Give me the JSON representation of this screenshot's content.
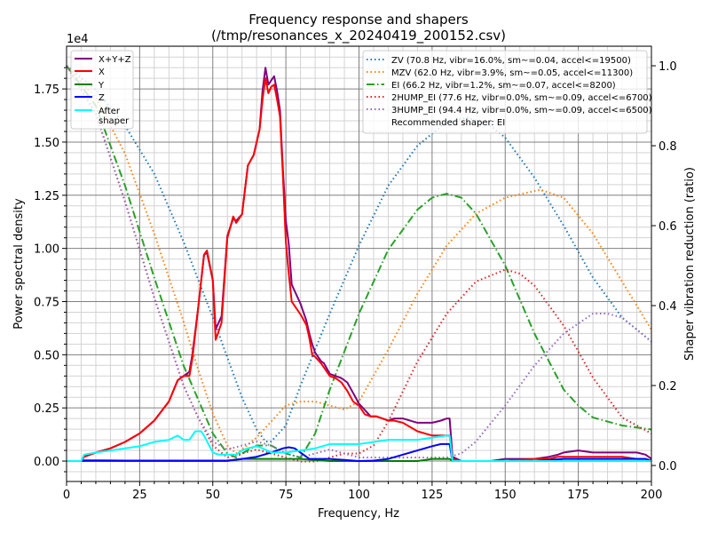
{
  "chart_data": {
    "type": "line",
    "title": "Frequency response and shapers",
    "subtitle": "(/tmp/resonances_x_20240419_200152.csv)",
    "xlabel": "Frequency, Hz",
    "ylabel": "Power spectral density",
    "y2label": "Shaper vibration reduction (ratio)",
    "y_offset_label": "1e4",
    "xlim": [
      0,
      200
    ],
    "ylim": [
      -0.096,
      1.951
    ],
    "y2lim": [
      -0.04,
      1.049
    ],
    "grid": true,
    "xticks": [
      0,
      25,
      50,
      75,
      100,
      125,
      150,
      175,
      200
    ],
    "xtick_labels": [
      "0",
      "25",
      "50",
      "75",
      "100",
      "125",
      "150",
      "175",
      "200"
    ],
    "yticks": [
      0,
      0.25,
      0.5,
      0.75,
      1.0,
      1.25,
      1.5,
      1.75
    ],
    "ytick_labels": [
      "0.00",
      "0.25",
      "0.50",
      "0.75",
      "1.00",
      "1.25",
      "1.50",
      "1.75"
    ],
    "y2ticks": [
      0,
      0.2,
      0.4,
      0.6,
      0.8,
      1.0
    ],
    "y2tick_labels": [
      "0.0",
      "0.2",
      "0.4",
      "0.6",
      "0.8",
      "1.0"
    ],
    "legend_left_placement": "top-left",
    "legend_right_placement": "top-right",
    "psd_series": [
      {
        "name": "X+Y+Z",
        "color": "#800080",
        "width": 2,
        "x": [
          0,
          5,
          6,
          10,
          15,
          20,
          25,
          30,
          35,
          38,
          40,
          42,
          43,
          45,
          47,
          48,
          50,
          51,
          53,
          55,
          57,
          58,
          60,
          62,
          64,
          65,
          66,
          67,
          68,
          69,
          70,
          71,
          72,
          73,
          74,
          75,
          76,
          77,
          78,
          80,
          82,
          83,
          84,
          85,
          87,
          88,
          90,
          92,
          94,
          96,
          98,
          100,
          102,
          104,
          106,
          108,
          110,
          112,
          115,
          120,
          125,
          128,
          130,
          131,
          132,
          135,
          140,
          145,
          150,
          160,
          165,
          168,
          170,
          175,
          180,
          185,
          190,
          195,
          198,
          200
        ],
        "y": [
          0,
          0,
          0.02,
          0.04,
          0.06,
          0.09,
          0.13,
          0.19,
          0.28,
          0.38,
          0.4,
          0.42,
          0.5,
          0.72,
          0.97,
          0.98,
          0.85,
          0.62,
          0.68,
          1.06,
          1.14,
          1.13,
          1.16,
          1.39,
          1.44,
          1.5,
          1.56,
          1.74,
          1.85,
          1.77,
          1.79,
          1.81,
          1.74,
          1.65,
          1.37,
          1.13,
          1.02,
          0.83,
          0.8,
          0.74,
          0.66,
          0.6,
          0.55,
          0.51,
          0.47,
          0.46,
          0.41,
          0.4,
          0.39,
          0.37,
          0.32,
          0.27,
          0.24,
          0.21,
          0.21,
          0.2,
          0.19,
          0.2,
          0.2,
          0.18,
          0.18,
          0.19,
          0.2,
          0.2,
          0.02,
          0.0,
          0.0,
          0.0,
          0.01,
          0.01,
          0.02,
          0.03,
          0.04,
          0.05,
          0.04,
          0.04,
          0.04,
          0.04,
          0.03,
          0.01
        ]
      },
      {
        "name": "X",
        "color": "#ff0000",
        "width": 2,
        "x": [
          0,
          5,
          6,
          10,
          15,
          20,
          25,
          30,
          35,
          38,
          40,
          42,
          43,
          45,
          47,
          48,
          50,
          51,
          53,
          55,
          57,
          58,
          60,
          62,
          64,
          65,
          66,
          67,
          68,
          69,
          70,
          71,
          72,
          73,
          74,
          75,
          76,
          77,
          78,
          80,
          82,
          83,
          84,
          85,
          87,
          88,
          90,
          92,
          94,
          96,
          98,
          100,
          102,
          104,
          106,
          108,
          110,
          112,
          115,
          120,
          125,
          128,
          130,
          131,
          132,
          135,
          140,
          145,
          150,
          160,
          165,
          168,
          170,
          175,
          180,
          185,
          190,
          195,
          198,
          200
        ],
        "y": [
          0,
          0,
          0.02,
          0.04,
          0.06,
          0.09,
          0.13,
          0.19,
          0.28,
          0.38,
          0.4,
          0.4,
          0.48,
          0.72,
          0.97,
          0.99,
          0.85,
          0.57,
          0.65,
          1.05,
          1.15,
          1.12,
          1.16,
          1.39,
          1.44,
          1.5,
          1.56,
          1.7,
          1.8,
          1.73,
          1.76,
          1.77,
          1.7,
          1.62,
          1.34,
          1.03,
          0.88,
          0.75,
          0.73,
          0.69,
          0.64,
          0.58,
          0.5,
          0.49,
          0.46,
          0.44,
          0.4,
          0.39,
          0.37,
          0.33,
          0.28,
          0.26,
          0.22,
          0.21,
          0.21,
          0.2,
          0.19,
          0.19,
          0.18,
          0.14,
          0.12,
          0.12,
          0.12,
          0.12,
          0.01,
          0.0,
          0.0,
          0.0,
          0.0,
          0.01,
          0.01,
          0.02,
          0.02,
          0.02,
          0.02,
          0.02,
          0.02,
          0.01,
          0.01,
          0.0
        ]
      },
      {
        "name": "Y",
        "color": "#008000",
        "width": 2,
        "x": [
          0,
          20,
          40,
          55,
          60,
          70,
          80,
          90,
          100,
          110,
          120,
          125,
          130,
          131,
          132,
          135,
          150,
          175,
          200
        ],
        "y": [
          0,
          0,
          0,
          0,
          0.01,
          0.01,
          0.01,
          0.0,
          0.0,
          0.0,
          0.0,
          0.01,
          0.01,
          0.01,
          0.0,
          0.0,
          0.0,
          0.0,
          0.0
        ]
      },
      {
        "name": "Z",
        "color": "#0000ff",
        "width": 2,
        "x": [
          0,
          5,
          6,
          10,
          20,
          30,
          40,
          50,
          55,
          60,
          65,
          70,
          74,
          76,
          78,
          80,
          82,
          83,
          85,
          90,
          95,
          100,
          105,
          110,
          115,
          120,
          125,
          128,
          130,
          131,
          132,
          135,
          140,
          150,
          160,
          170,
          175,
          180,
          190,
          195,
          198,
          200
        ],
        "y": [
          0,
          0,
          0.003,
          0.003,
          0.002,
          0.002,
          0.002,
          0.002,
          0.002,
          0.01,
          0.02,
          0.04,
          0.06,
          0.065,
          0.06,
          0.04,
          0.02,
          0.01,
          0.01,
          0.01,
          0.005,
          0.0,
          0.002,
          0.01,
          0.03,
          0.05,
          0.07,
          0.08,
          0.08,
          0.08,
          0.0,
          0.0,
          0.0,
          0.0,
          0.0,
          0.01,
          0.01,
          0.01,
          0.01,
          0.01,
          0.01,
          0.0
        ]
      },
      {
        "name": "After\nshaper",
        "color": "#00ffff",
        "width": 2,
        "x": [
          0,
          5,
          6,
          10,
          15,
          20,
          25,
          30,
          35,
          38,
          40,
          42,
          44,
          46,
          47,
          50,
          52,
          55,
          58,
          60,
          62,
          65,
          67,
          70,
          75,
          80,
          85,
          90,
          92,
          95,
          100,
          105,
          110,
          112,
          115,
          120,
          125,
          130,
          131,
          132,
          135,
          140,
          150,
          160,
          170,
          180,
          190,
          200
        ],
        "y": [
          0,
          0,
          0.03,
          0.04,
          0.05,
          0.06,
          0.07,
          0.09,
          0.1,
          0.12,
          0.1,
          0.1,
          0.14,
          0.14,
          0.12,
          0.04,
          0.03,
          0.03,
          0.03,
          0.05,
          0.06,
          0.07,
          0.06,
          0.04,
          0.04,
          0.05,
          0.06,
          0.08,
          0.08,
          0.08,
          0.08,
          0.09,
          0.1,
          0.1,
          0.1,
          0.1,
          0.11,
          0.12,
          0.12,
          0.0,
          0.0,
          0.0,
          0.0,
          0.0,
          0.0,
          0.0,
          0.0,
          0.0
        ]
      }
    ],
    "shaper_series": [
      {
        "name": "ZV (70.8 Hz, vibr=16.0%, sm~=0.04, accel<=19500)",
        "color": "#1f77b4",
        "style": "dotted",
        "x": [
          0,
          10,
          20,
          30,
          40,
          50,
          55,
          60,
          65,
          68,
          70,
          75,
          80,
          90,
          100,
          110,
          120,
          130,
          137,
          145,
          150,
          160,
          170,
          180,
          190,
          200
        ],
        "y": [
          1.0,
          0.94,
          0.85,
          0.73,
          0.56,
          0.37,
          0.27,
          0.17,
          0.09,
          0.06,
          0.06,
          0.1,
          0.2,
          0.38,
          0.55,
          0.7,
          0.8,
          0.86,
          0.87,
          0.85,
          0.82,
          0.72,
          0.6,
          0.47,
          0.37,
          0.31
        ]
      },
      {
        "name": "MZV (62.0 Hz, vibr=3.9%, sm~=0.05, accel<=11300)",
        "color": "#ff7f0e",
        "style": "dotted",
        "x": [
          0,
          10,
          20,
          30,
          40,
          45,
          50,
          55,
          58,
          60,
          65,
          70,
          75,
          80,
          85,
          90,
          95,
          100,
          110,
          120,
          130,
          140,
          150,
          162,
          170,
          180,
          190,
          200
        ],
        "y": [
          1.0,
          0.92,
          0.78,
          0.58,
          0.36,
          0.24,
          0.13,
          0.05,
          0.03,
          0.04,
          0.07,
          0.11,
          0.15,
          0.16,
          0.16,
          0.15,
          0.14,
          0.16,
          0.29,
          0.43,
          0.55,
          0.63,
          0.67,
          0.69,
          0.67,
          0.58,
          0.46,
          0.34
        ]
      },
      {
        "name": "EI (66.2 Hz, vibr=1.2%, sm~=0.07, accel<=8200)",
        "color": "#2ca02c",
        "style": "dashdot",
        "x": [
          0,
          10,
          20,
          30,
          40,
          50,
          55,
          58,
          60,
          65,
          70,
          75,
          80,
          85,
          90,
          100,
          110,
          120,
          125,
          130,
          135,
          140,
          150,
          160,
          170,
          175,
          180,
          190,
          200
        ],
        "y": [
          1.0,
          0.9,
          0.7,
          0.47,
          0.25,
          0.08,
          0.03,
          0.02,
          0.03,
          0.05,
          0.05,
          0.03,
          0.02,
          0.08,
          0.19,
          0.38,
          0.54,
          0.64,
          0.67,
          0.68,
          0.67,
          0.63,
          0.5,
          0.33,
          0.19,
          0.15,
          0.12,
          0.1,
          0.09
        ]
      },
      {
        "name": "2HUMP_EI (77.6 Hz, vibr=0.0%, sm~=0.09, accel<=6700)",
        "color": "#d62728",
        "style": "dotted",
        "x": [
          0,
          10,
          20,
          30,
          40,
          45,
          50,
          55,
          60,
          65,
          70,
          75,
          80,
          85,
          90,
          95,
          100,
          105,
          110,
          120,
          130,
          140,
          150,
          155,
          160,
          170,
          180,
          190,
          200
        ],
        "y": [
          1.0,
          0.88,
          0.66,
          0.42,
          0.2,
          0.12,
          0.05,
          0.02,
          0.03,
          0.04,
          0.03,
          0.02,
          0.01,
          0.01,
          0.02,
          0.03,
          0.03,
          0.05,
          0.11,
          0.26,
          0.38,
          0.46,
          0.49,
          0.48,
          0.45,
          0.35,
          0.22,
          0.12,
          0.08
        ]
      },
      {
        "name": "3HUMP_EI (94.4 Hz, vibr=0.0%, sm~=0.09, accel<=6500)",
        "color": "#9467bd",
        "style": "dotted",
        "x": [
          0,
          10,
          20,
          30,
          40,
          45,
          50,
          55,
          60,
          65,
          70,
          75,
          80,
          85,
          90,
          95,
          100,
          110,
          120,
          130,
          135,
          140,
          150,
          160,
          170,
          180,
          185,
          190,
          200
        ],
        "y": [
          1.0,
          0.88,
          0.66,
          0.42,
          0.2,
          0.12,
          0.06,
          0.04,
          0.05,
          0.06,
          0.05,
          0.03,
          0.02,
          0.03,
          0.04,
          0.03,
          0.02,
          0.02,
          0.02,
          0.02,
          0.03,
          0.06,
          0.15,
          0.25,
          0.33,
          0.38,
          0.38,
          0.37,
          0.31
        ]
      }
    ],
    "recommended_text": "Recommended shaper: EI"
  }
}
